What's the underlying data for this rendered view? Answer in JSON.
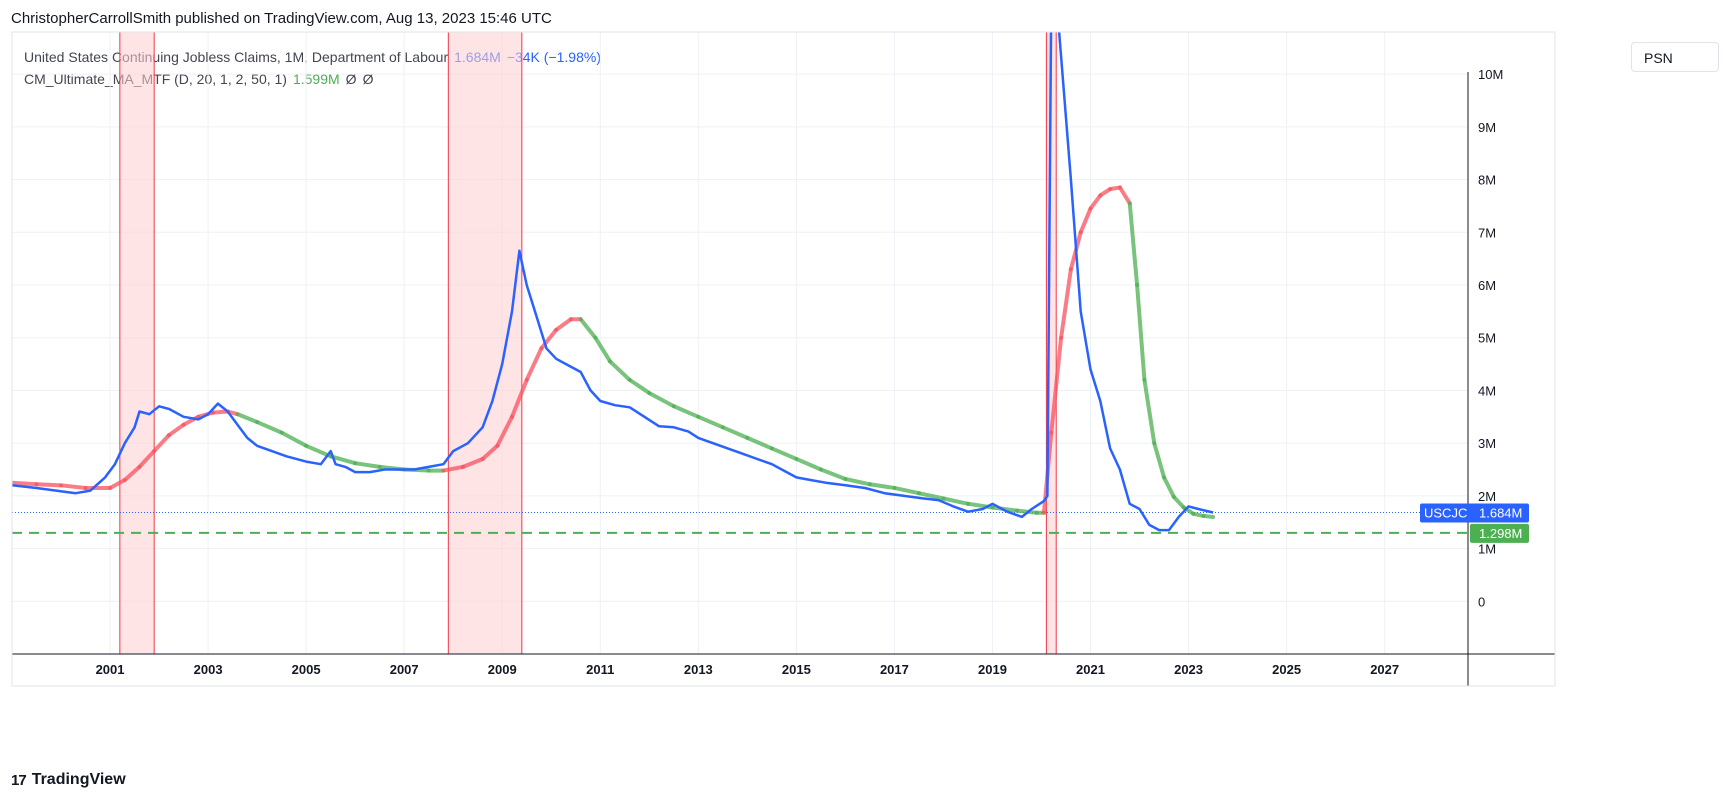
{
  "header": {
    "published_line": "ChristopherCarrollSmith published on TradingView.com, Aug 13, 2023 15:46 UTC"
  },
  "legend": {
    "series_title": "United States Continuing Jobless Claims, 1M, Department of Labour",
    "series_value": "1.684M",
    "series_change": "−34K (−1.98%)",
    "indicator_title": "CM_Ultimate_MA_MTF (D, 20, 1, 2, 50, 1)",
    "indicator_value": "1.599M",
    "indicator_extra1": "Ø",
    "indicator_extra2": "Ø"
  },
  "toolbar": {
    "scale_button": "PSN"
  },
  "brand": {
    "name": "TradingView",
    "logo_glyph": "17"
  },
  "price_labels": {
    "last_symbol": "USCJC",
    "last_value": "1.684M",
    "last_color": "#2962ff",
    "hline_value": "1.298M",
    "hline_color": "#4caf50"
  },
  "colors": {
    "blue": "#2962ff",
    "ma_up": "#f7525f",
    "ma_down": "#4caf50",
    "recession": "#ffcdd2"
  },
  "chart_data": {
    "type": "line",
    "x_tick_labels": [
      "2001",
      "2003",
      "2005",
      "2007",
      "2009",
      "2011",
      "2013",
      "2015",
      "2017",
      "2019",
      "2021",
      "2023",
      "2025",
      "2027"
    ],
    "y_tick_labels": [
      "0",
      "1M",
      "2M",
      "3M",
      "4M",
      "5M",
      "6M",
      "7M",
      "8M",
      "9M",
      "10M"
    ],
    "xlim": [
      1999.0,
      2028.7
    ],
    "ylim": [
      -1.0,
      10.8
    ],
    "y_unit": "M",
    "grid": true,
    "recession_bands": [
      [
        2001.2,
        2001.9
      ],
      [
        2007.9,
        2009.4
      ],
      [
        2020.1,
        2020.3
      ]
    ],
    "horizontal_lines": [
      {
        "value": 1.298,
        "style": "dashed",
        "color": "#4caf50"
      }
    ],
    "series": [
      {
        "name": "United States Continuing Jobless Claims",
        "color": "#2962ff",
        "x": [
          1999.0,
          1999.5,
          1999.9,
          2000.3,
          2000.6,
          2000.9,
          2001.1,
          2001.3,
          2001.5,
          2001.6,
          2001.8,
          2002.0,
          2002.2,
          2002.5,
          2002.8,
          2003.0,
          2003.2,
          2003.4,
          2003.6,
          2003.8,
          2004.0,
          2004.3,
          2004.6,
          2005.0,
          2005.3,
          2005.5,
          2005.6,
          2005.8,
          2006.0,
          2006.3,
          2006.6,
          2006.9,
          2007.2,
          2007.5,
          2007.8,
          2008.0,
          2008.3,
          2008.6,
          2008.8,
          2009.0,
          2009.2,
          2009.35,
          2009.5,
          2009.7,
          2009.9,
          2010.1,
          2010.3,
          2010.6,
          2010.8,
          2011.0,
          2011.3,
          2011.6,
          2011.9,
          2012.2,
          2012.5,
          2012.8,
          2013.0,
          2013.3,
          2013.6,
          2013.9,
          2014.2,
          2014.5,
          2014.8,
          2015.0,
          2015.3,
          2015.6,
          2016.0,
          2016.4,
          2016.8,
          2017.2,
          2017.6,
          2017.9,
          2018.2,
          2018.5,
          2018.8,
          2019.0,
          2019.3,
          2019.6,
          2019.8,
          2020.05,
          2020.12,
          2020.2,
          2020.3,
          2020.6,
          2020.8,
          2021.0,
          2021.2,
          2021.4,
          2021.6,
          2021.8,
          2022.0,
          2022.2,
          2022.4,
          2022.6,
          2022.8,
          2023.0,
          2023.2,
          2023.5
        ],
        "values": [
          2.2,
          2.15,
          2.1,
          2.05,
          2.1,
          2.35,
          2.6,
          3.0,
          3.3,
          3.6,
          3.55,
          3.7,
          3.65,
          3.5,
          3.45,
          3.55,
          3.75,
          3.6,
          3.35,
          3.1,
          2.95,
          2.85,
          2.75,
          2.65,
          2.6,
          2.85,
          2.6,
          2.55,
          2.45,
          2.45,
          2.5,
          2.5,
          2.5,
          2.55,
          2.6,
          2.85,
          3.0,
          3.3,
          3.8,
          4.5,
          5.5,
          6.65,
          6.0,
          5.4,
          4.8,
          4.6,
          4.5,
          4.35,
          4.0,
          3.8,
          3.72,
          3.68,
          3.5,
          3.32,
          3.3,
          3.22,
          3.1,
          3.0,
          2.9,
          2.8,
          2.7,
          2.6,
          2.45,
          2.35,
          2.3,
          2.25,
          2.2,
          2.15,
          2.05,
          2.0,
          1.95,
          1.92,
          1.8,
          1.7,
          1.75,
          1.85,
          1.7,
          1.6,
          1.75,
          1.9,
          2.0,
          11.5,
          11.5,
          8.0,
          5.5,
          4.4,
          3.8,
          2.9,
          2.5,
          1.85,
          1.75,
          1.45,
          1.35,
          1.35,
          1.6,
          1.8,
          1.75,
          1.684
        ]
      },
      {
        "name": "CM_Ultimate_MA_MTF",
        "x": [
          1999.0,
          1999.5,
          2000.0,
          2000.5,
          2001.0,
          2001.3,
          2001.6,
          2001.9,
          2002.2,
          2002.5,
          2002.8,
          2003.1,
          2003.4,
          2003.6,
          2004.0,
          2004.5,
          2005.0,
          2005.5,
          2006.0,
          2006.5,
          2007.0,
          2007.5,
          2007.8,
          2008.2,
          2008.6,
          2008.9,
          2009.2,
          2009.5,
          2009.8,
          2010.1,
          2010.4,
          2010.6,
          2010.9,
          2011.2,
          2011.6,
          2012.0,
          2012.5,
          2013.0,
          2013.5,
          2014.0,
          2014.5,
          2015.0,
          2015.5,
          2016.0,
          2016.5,
          2017.0,
          2017.5,
          2018.0,
          2018.5,
          2019.0,
          2019.5,
          2019.9,
          2020.05,
          2020.2,
          2020.4,
          2020.6,
          2020.8,
          2021.0,
          2021.2,
          2021.4,
          2021.6,
          2021.8,
          2021.95,
          2022.1,
          2022.3,
          2022.5,
          2022.7,
          2022.9,
          2023.1,
          2023.3,
          2023.5
        ],
        "values": [
          2.25,
          2.22,
          2.2,
          2.15,
          2.15,
          2.3,
          2.55,
          2.85,
          3.15,
          3.35,
          3.5,
          3.58,
          3.6,
          3.55,
          3.4,
          3.2,
          2.95,
          2.75,
          2.62,
          2.55,
          2.5,
          2.48,
          2.48,
          2.55,
          2.7,
          2.95,
          3.5,
          4.2,
          4.8,
          5.15,
          5.35,
          5.35,
          5.0,
          4.55,
          4.2,
          3.95,
          3.7,
          3.5,
          3.3,
          3.1,
          2.9,
          2.7,
          2.5,
          2.32,
          2.22,
          2.15,
          2.05,
          1.95,
          1.85,
          1.78,
          1.72,
          1.68,
          1.68,
          3.2,
          5.0,
          6.3,
          7.0,
          7.45,
          7.7,
          7.82,
          7.85,
          7.55,
          6.0,
          4.2,
          3.0,
          2.35,
          1.98,
          1.78,
          1.66,
          1.62,
          1.599
        ],
        "color_up": "#f7525f",
        "color_down": "#4caf50",
        "turning_points": [
          2003.5,
          2007.7,
          2010.5,
          2020.0,
          2021.8
        ]
      }
    ]
  }
}
